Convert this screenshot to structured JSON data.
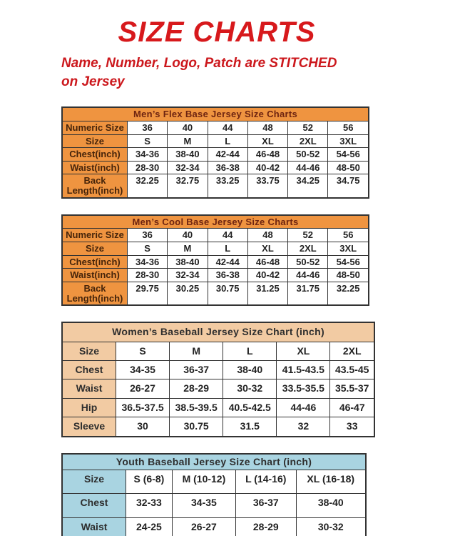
{
  "header": {
    "title": "SIZE CHARTS",
    "subtitle_lines": [
      "Name, Number, Logo, Patch are STITCHED",
      "on Jersey"
    ]
  },
  "colors": {
    "title_red": "#d7191c",
    "subtitle_red": "#cc181d",
    "orange": "#ef9440",
    "orange_title_text": "#6e2410",
    "orange_label_text": "#46240a",
    "peach": "#f2cba3",
    "blue": "#a9d4e1",
    "neutral_header_text": "#2e2e2e",
    "border": "#333333",
    "value_text": "#222222"
  },
  "tables": [
    {
      "title": "Men’s Flex Base Jersey Size Charts",
      "rows": [
        {
          "label": "Numeric Size",
          "values": [
            "36",
            "40",
            "44",
            "48",
            "52",
            "56"
          ]
        },
        {
          "label": "Size",
          "values": [
            "S",
            "M",
            "L",
            "XL",
            "2XL",
            "3XL"
          ]
        },
        {
          "label": "Chest(inch)",
          "values": [
            "34-36",
            "38-40",
            "42-44",
            "46-48",
            "50-52",
            "54-56"
          ]
        },
        {
          "label": "Waist(inch)",
          "values": [
            "28-30",
            "32-34",
            "36-38",
            "40-42",
            "44-46",
            "48-50"
          ]
        },
        {
          "label": "Back Length(inch)",
          "values": [
            "32.25",
            "32.75",
            "33.25",
            "33.75",
            "34.25",
            "34.75"
          ]
        }
      ]
    },
    {
      "title": "Men’s Cool Base Jersey Size Charts",
      "rows": [
        {
          "label": "Numeric Size",
          "values": [
            "36",
            "40",
            "44",
            "48",
            "52",
            "56"
          ]
        },
        {
          "label": "Size",
          "values": [
            "S",
            "M",
            "L",
            "XL",
            "2XL",
            "3XL"
          ]
        },
        {
          "label": "Chest(inch)",
          "values": [
            "34-36",
            "38-40",
            "42-44",
            "46-48",
            "50-52",
            "54-56"
          ]
        },
        {
          "label": "Waist(inch)",
          "values": [
            "28-30",
            "32-34",
            "36-38",
            "40-42",
            "44-46",
            "48-50"
          ]
        },
        {
          "label": "Back Length(inch)",
          "values": [
            "29.75",
            "30.25",
            "30.75",
            "31.25",
            "31.75",
            "32.25"
          ]
        }
      ]
    },
    {
      "title": "Women’s Baseball Jersey Size Chart (inch)",
      "rows": [
        {
          "label": "Size",
          "values": [
            "S",
            "M",
            "L",
            "XL",
            "2XL"
          ]
        },
        {
          "label": "Chest",
          "values": [
            "34-35",
            "36-37",
            "38-40",
            "41.5-43.5",
            "43.5-45"
          ]
        },
        {
          "label": "Waist",
          "values": [
            "26-27",
            "28-29",
            "30-32",
            "33.5-35.5",
            "35.5-37"
          ]
        },
        {
          "label": "Hip",
          "values": [
            "36.5-37.5",
            "38.5-39.5",
            "40.5-42.5",
            "44-46",
            "46-47"
          ]
        },
        {
          "label": "Sleeve",
          "values": [
            "30",
            "30.75",
            "31.5",
            "32",
            "33"
          ]
        }
      ]
    },
    {
      "title": "Youth Baseball Jersey Size Chart (inch)",
      "rows": [
        {
          "label": "Size",
          "values": [
            "S (6-8)",
            "M (10-12)",
            "L (14-16)",
            "XL (16-18)"
          ]
        },
        {
          "label": "Chest",
          "values": [
            "32-33",
            "34-35",
            "36-37",
            "38-40"
          ]
        },
        {
          "label": "Waist",
          "values": [
            "24-25",
            "26-27",
            "28-29",
            "30-32"
          ]
        }
      ]
    }
  ]
}
